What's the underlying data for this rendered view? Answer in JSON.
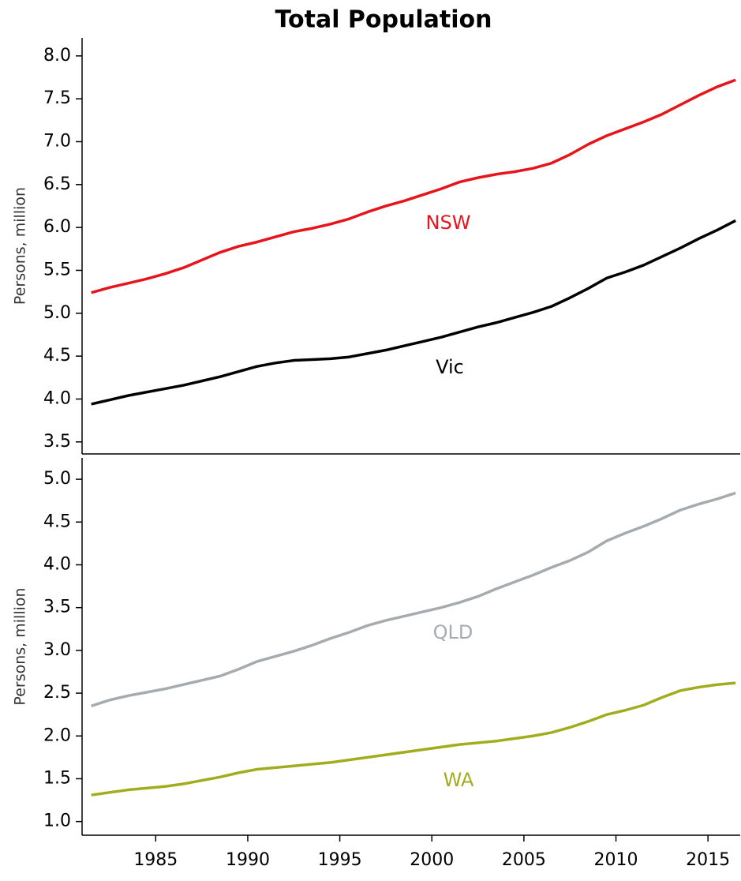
{
  "chart_data": [
    {
      "type": "line",
      "title": "Total Population",
      "y_label": "Persons, million",
      "x": [
        1981.5,
        1982.5,
        1983.5,
        1984.5,
        1985.5,
        1986.5,
        1987.5,
        1988.5,
        1989.5,
        1990.5,
        1991.5,
        1992.5,
        1993.5,
        1994.5,
        1995.5,
        1996.5,
        1997.5,
        1998.5,
        1999.5,
        2000.5,
        2001.5,
        2002.5,
        2003.5,
        2004.5,
        2005.5,
        2006.5,
        2007.5,
        2008.5,
        2009.5,
        2010.5,
        2011.5,
        2012.5,
        2013.5,
        2014.5,
        2015.5,
        2016.5
      ],
      "xlim": [
        1981,
        2016.75
      ],
      "ylim": [
        3.36,
        8.21
      ],
      "yticks": [
        {
          "value": 3.5,
          "label": "3.5"
        },
        {
          "value": 4,
          "label": "4.0"
        },
        {
          "value": 4.5,
          "label": "4.5"
        },
        {
          "value": 5,
          "label": "5.0"
        },
        {
          "value": 5.5,
          "label": "5.5"
        },
        {
          "value": 6,
          "label": "6.0"
        },
        {
          "value": 6.5,
          "label": "6.5"
        },
        {
          "value": 7,
          "label": "7.0"
        },
        {
          "value": 7.5,
          "label": "7.5"
        },
        {
          "value": 8,
          "label": "8.0"
        }
      ],
      "series": [
        {
          "name": "NSW",
          "color": "#e8141b",
          "values": [
            5.24,
            5.3,
            5.35,
            5.4,
            5.46,
            5.53,
            5.62,
            5.71,
            5.78,
            5.83,
            5.89,
            5.95,
            5.99,
            6.04,
            6.1,
            6.18,
            6.25,
            6.31,
            6.38,
            6.45,
            6.53,
            6.58,
            6.62,
            6.65,
            6.69,
            6.75,
            6.85,
            6.97,
            7.07,
            7.15,
            7.23,
            7.32,
            7.43,
            7.54,
            7.64,
            7.72
          ]
        },
        {
          "name": "Vic",
          "color": "#000000",
          "values": [
            3.94,
            3.99,
            4.04,
            4.08,
            4.12,
            4.16,
            4.21,
            4.26,
            4.32,
            4.38,
            4.42,
            4.45,
            4.46,
            4.47,
            4.49,
            4.53,
            4.57,
            4.62,
            4.67,
            4.72,
            4.78,
            4.84,
            4.89,
            4.95,
            5.01,
            5.08,
            5.18,
            5.29,
            5.41,
            5.48,
            5.56,
            5.66,
            5.76,
            5.87,
            5.97,
            6.08
          ]
        }
      ]
    },
    {
      "type": "line",
      "y_label": "Persons, million",
      "x": [
        1981.5,
        1982.5,
        1983.5,
        1984.5,
        1985.5,
        1986.5,
        1987.5,
        1988.5,
        1989.5,
        1990.5,
        1991.5,
        1992.5,
        1993.5,
        1994.5,
        1995.5,
        1996.5,
        1997.5,
        1998.5,
        1999.5,
        2000.5,
        2001.5,
        2002.5,
        2003.5,
        2004.5,
        2005.5,
        2006.5,
        2007.5,
        2008.5,
        2009.5,
        2010.5,
        2011.5,
        2012.5,
        2013.5,
        2014.5,
        2015.5,
        2016.5
      ],
      "xlim": [
        1981,
        2016.75
      ],
      "xticks": [
        1985,
        1990,
        1995,
        2000,
        2005,
        2010,
        2015
      ],
      "ylim": [
        0.84,
        5.25
      ],
      "yticks": [
        {
          "value": 1,
          "label": "1.0"
        },
        {
          "value": 1.5,
          "label": "1.5"
        },
        {
          "value": 2,
          "label": "2.0"
        },
        {
          "value": 2.5,
          "label": "2.5"
        },
        {
          "value": 3,
          "label": "3.0"
        },
        {
          "value": 3.5,
          "label": "3.5"
        },
        {
          "value": 4,
          "label": "4.0"
        },
        {
          "value": 4.5,
          "label": "4.5"
        },
        {
          "value": 5,
          "label": "5.0"
        }
      ],
      "series": [
        {
          "name": "QLD",
          "color": "#a6abaf",
          "values": [
            2.35,
            2.42,
            2.47,
            2.51,
            2.55,
            2.6,
            2.65,
            2.7,
            2.78,
            2.87,
            2.93,
            2.99,
            3.06,
            3.14,
            3.21,
            3.29,
            3.35,
            3.4,
            3.45,
            3.5,
            3.56,
            3.63,
            3.72,
            3.8,
            3.88,
            3.97,
            4.05,
            4.15,
            4.28,
            4.37,
            4.45,
            4.54,
            4.64,
            4.71,
            4.77,
            4.84
          ]
        },
        {
          "name": "WA",
          "color": "#a2ad1e",
          "values": [
            1.31,
            1.34,
            1.37,
            1.39,
            1.41,
            1.44,
            1.48,
            1.52,
            1.57,
            1.61,
            1.63,
            1.65,
            1.67,
            1.69,
            1.72,
            1.75,
            1.78,
            1.81,
            1.84,
            1.87,
            1.9,
            1.92,
            1.94,
            1.97,
            2.0,
            2.04,
            2.1,
            2.17,
            2.25,
            2.3,
            2.36,
            2.45,
            2.53,
            2.57,
            2.6,
            2.62
          ]
        }
      ]
    }
  ]
}
